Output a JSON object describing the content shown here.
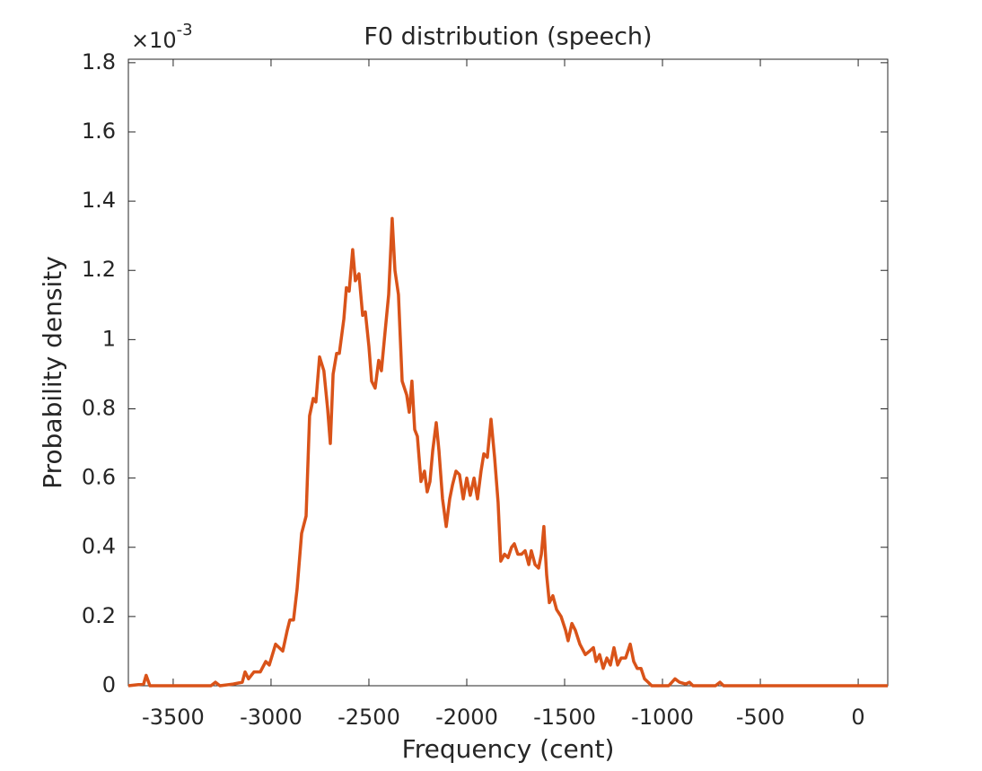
{
  "chart_data": {
    "type": "line",
    "title": "F0 distribution (speech)",
    "xlabel": "Frequency (cent)",
    "ylabel": "Probability density",
    "exponent_base": "×10",
    "exponent_power": "-3",
    "xlim": [
      -3729,
      151
    ],
    "ylim": [
      0,
      1.81
    ],
    "xticks": [
      -3500,
      -3000,
      -2500,
      -2000,
      -1500,
      -1000,
      -500,
      0
    ],
    "yticks": [
      0,
      0.2,
      0.4,
      0.6,
      0.8,
      1,
      1.2,
      1.4,
      1.6,
      1.8
    ],
    "grid": false,
    "series": [
      {
        "color": "#d95319",
        "x": [
          -3729,
          -3651,
          -3638,
          -3619,
          -3307,
          -3284,
          -3261,
          -3193,
          -3147,
          -3133,
          -3115,
          -3087,
          -3055,
          -3027,
          -3009,
          -2977,
          -2940,
          -2917,
          -2904,
          -2885,
          -2867,
          -2844,
          -2821,
          -2803,
          -2784,
          -2771,
          -2752,
          -2730,
          -2711,
          -2697,
          -2683,
          -2665,
          -2651,
          -2628,
          -2615,
          -2601,
          -2583,
          -2569,
          -2551,
          -2532,
          -2518,
          -2500,
          -2486,
          -2468,
          -2450,
          -2436,
          -2418,
          -2399,
          -2381,
          -2367,
          -2349,
          -2330,
          -2307,
          -2294,
          -2280,
          -2266,
          -2252,
          -2234,
          -2216,
          -2202,
          -2188,
          -2174,
          -2156,
          -2142,
          -2124,
          -2105,
          -2087,
          -2073,
          -2055,
          -2037,
          -2018,
          -2000,
          -1982,
          -1963,
          -1945,
          -1927,
          -1913,
          -1895,
          -1876,
          -1858,
          -1840,
          -1826,
          -1807,
          -1789,
          -1771,
          -1757,
          -1739,
          -1720,
          -1702,
          -1683,
          -1670,
          -1651,
          -1633,
          -1619,
          -1606,
          -1592,
          -1578,
          -1560,
          -1541,
          -1518,
          -1495,
          -1482,
          -1463,
          -1445,
          -1422,
          -1394,
          -1372,
          -1353,
          -1339,
          -1321,
          -1303,
          -1284,
          -1266,
          -1248,
          -1229,
          -1211,
          -1188,
          -1165,
          -1147,
          -1129,
          -1110,
          -1092,
          -1073,
          -1055,
          -968,
          -936,
          -913,
          -881,
          -862,
          -844,
          -729,
          -706,
          -688,
          151
        ],
        "values": [
          0,
          0.005,
          0.03,
          0,
          0,
          0.01,
          0,
          0.005,
          0.01,
          0.04,
          0.02,
          0.04,
          0.04,
          0.07,
          0.06,
          0.12,
          0.1,
          0.16,
          0.19,
          0.19,
          0.28,
          0.44,
          0.49,
          0.78,
          0.83,
          0.82,
          0.95,
          0.91,
          0.8,
          0.7,
          0.9,
          0.96,
          0.96,
          1.06,
          1.15,
          1.14,
          1.26,
          1.17,
          1.19,
          1.07,
          1.08,
          0.98,
          0.88,
          0.86,
          0.94,
          0.91,
          1.02,
          1.13,
          1.35,
          1.2,
          1.13,
          0.88,
          0.84,
          0.79,
          0.88,
          0.74,
          0.72,
          0.59,
          0.62,
          0.56,
          0.59,
          0.68,
          0.76,
          0.68,
          0.54,
          0.46,
          0.54,
          0.58,
          0.62,
          0.61,
          0.54,
          0.6,
          0.55,
          0.6,
          0.54,
          0.62,
          0.67,
          0.66,
          0.77,
          0.66,
          0.53,
          0.36,
          0.38,
          0.37,
          0.4,
          0.41,
          0.38,
          0.38,
          0.39,
          0.35,
          0.39,
          0.35,
          0.34,
          0.38,
          0.46,
          0.32,
          0.24,
          0.26,
          0.22,
          0.2,
          0.16,
          0.13,
          0.18,
          0.16,
          0.12,
          0.09,
          0.1,
          0.11,
          0.07,
          0.09,
          0.05,
          0.08,
          0.06,
          0.11,
          0.06,
          0.08,
          0.08,
          0.12,
          0.07,
          0.05,
          0.05,
          0.02,
          0.01,
          0,
          0,
          0.02,
          0.01,
          0.005,
          0.01,
          0,
          0,
          0.01,
          0,
          0
        ]
      }
    ]
  }
}
